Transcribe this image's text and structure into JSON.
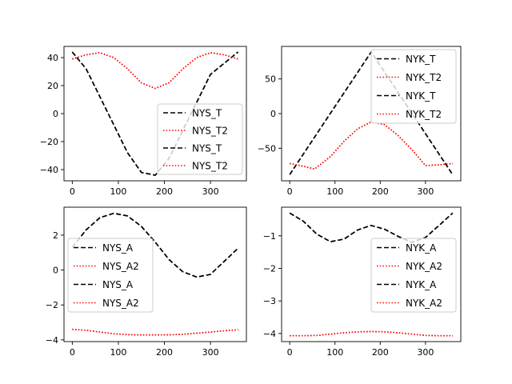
{
  "chart_data": [
    {
      "type": "line",
      "title": "",
      "xlabel": "",
      "ylabel": "",
      "xlim": [
        -18,
        378
      ],
      "ylim": [
        -48,
        48
      ],
      "xticks": [
        0,
        100,
        200,
        300
      ],
      "xtick_labels": [
        "0",
        "100",
        "200",
        "300"
      ],
      "yticks": [
        -40,
        -20,
        0,
        20,
        40
      ],
      "ytick_labels": [
        "−40",
        "−20",
        "0",
        "20",
        "40"
      ],
      "legend": {
        "position": "lower-right",
        "entries": [
          "NYS_T",
          "NYS_T2",
          "NYS_T",
          "NYS_T2"
        ]
      },
      "series": [
        {
          "name": "NYS_T",
          "style": "dashed",
          "color": "#000000",
          "x": [
            0,
            30,
            60,
            90,
            120,
            150,
            180,
            210,
            240,
            270,
            300,
            330,
            360
          ],
          "y": [
            44,
            32,
            12,
            -8,
            -28,
            -42,
            -44,
            -32,
            -12,
            8,
            28,
            36,
            44
          ]
        },
        {
          "name": "NYS_T2",
          "style": "dotted",
          "color": "#ff0000",
          "x": [
            0,
            30,
            60,
            90,
            120,
            150,
            180,
            210,
            240,
            270,
            300,
            330,
            360
          ],
          "y": [
            39,
            42,
            43.5,
            40,
            32,
            22,
            18,
            22,
            32,
            40,
            43.5,
            42,
            39
          ]
        },
        {
          "name": "NYS_T",
          "style": "dashed",
          "color": "#000000",
          "x": [
            0,
            30,
            60,
            90,
            120,
            150,
            180,
            210,
            240,
            270,
            300,
            330,
            360
          ],
          "y": [
            44,
            32,
            12,
            -8,
            -28,
            -42,
            -44,
            -32,
            -12,
            8,
            28,
            36,
            44
          ]
        },
        {
          "name": "NYS_T2",
          "style": "dotted",
          "color": "#ff0000",
          "x": [
            0,
            30,
            60,
            90,
            120,
            150,
            180,
            210,
            240,
            270,
            300,
            330,
            360
          ],
          "y": [
            39,
            42,
            43.5,
            40,
            32,
            22,
            18,
            22,
            32,
            40,
            43.5,
            42,
            39
          ]
        }
      ]
    },
    {
      "type": "line",
      "title": "",
      "xlabel": "",
      "ylabel": "",
      "xlim": [
        -18,
        378
      ],
      "ylim": [
        -97,
        97
      ],
      "xticks": [
        0,
        100,
        200,
        300
      ],
      "xtick_labels": [
        "0",
        "100",
        "200",
        "300"
      ],
      "yticks": [
        -50,
        0,
        50
      ],
      "ytick_labels": [
        "−50",
        "0",
        "50"
      ],
      "legend": {
        "position": "upper-right",
        "entries": [
          "NYK_T",
          "NYK_T2",
          "NYK_T",
          "NYK_T2"
        ]
      },
      "series": [
        {
          "name": "NYK_T",
          "style": "dashed",
          "color": "#000000",
          "x": [
            0,
            60,
            120,
            180,
            240,
            300,
            360
          ],
          "y": [
            -88,
            -29,
            30,
            89,
            30,
            -29,
            -88
          ]
        },
        {
          "name": "NYK_T2",
          "style": "dotted",
          "color": "#ff0000",
          "x": [
            0,
            30,
            55,
            90,
            120,
            150,
            180,
            210,
            240,
            270,
            300,
            330,
            360
          ],
          "y": [
            -72,
            -76,
            -80,
            -62,
            -40,
            -22,
            -12,
            -16,
            -32,
            -52,
            -75,
            -74,
            -72
          ]
        },
        {
          "name": "NYK_T",
          "style": "dashed",
          "color": "#000000",
          "x": [
            0,
            60,
            120,
            180,
            240,
            300,
            360
          ],
          "y": [
            -88,
            -29,
            30,
            89,
            30,
            -29,
            -88
          ]
        },
        {
          "name": "NYK_T2",
          "style": "dotted",
          "color": "#ff0000",
          "x": [
            0,
            30,
            55,
            90,
            120,
            150,
            180,
            210,
            240,
            270,
            300,
            330,
            360
          ],
          "y": [
            -72,
            -76,
            -80,
            -62,
            -40,
            -22,
            -12,
            -16,
            -32,
            -52,
            -75,
            -74,
            -72
          ]
        }
      ]
    },
    {
      "type": "line",
      "title": "",
      "xlabel": "",
      "ylabel": "",
      "xlim": [
        -18,
        378
      ],
      "ylim": [
        -4.1,
        3.6
      ],
      "xticks": [
        0,
        100,
        200,
        300
      ],
      "xtick_labels": [
        "0",
        "100",
        "200",
        "300"
      ],
      "yticks": [
        -4,
        -2,
        0,
        2
      ],
      "ytick_labels": [
        "−4",
        "−2",
        "0",
        "2"
      ],
      "legend": {
        "position": "center-left",
        "entries": [
          "NYS_A",
          "NYS_A2",
          "NYS_A",
          "NYS_A2"
        ]
      },
      "series": [
        {
          "name": "NYS_A",
          "style": "dashed",
          "color": "#000000",
          "x": [
            0,
            30,
            60,
            90,
            120,
            150,
            180,
            210,
            240,
            270,
            300,
            330,
            360
          ],
          "y": [
            1.3,
            2.3,
            3.0,
            3.25,
            3.1,
            2.5,
            1.6,
            0.6,
            -0.1,
            -0.4,
            -0.25,
            0.5,
            1.25
          ]
        },
        {
          "name": "NYS_A2",
          "style": "dotted",
          "color": "#ff0000",
          "x": [
            0,
            30,
            60,
            90,
            120,
            150,
            180,
            210,
            240,
            270,
            300,
            330,
            360
          ],
          "y": [
            -3.4,
            -3.45,
            -3.55,
            -3.65,
            -3.7,
            -3.72,
            -3.72,
            -3.71,
            -3.68,
            -3.62,
            -3.55,
            -3.48,
            -3.42
          ]
        },
        {
          "name": "NYS_A",
          "style": "dashed",
          "color": "#000000",
          "x": [
            0,
            30,
            60,
            90,
            120,
            150,
            180,
            210,
            240,
            270,
            300,
            330,
            360
          ],
          "y": [
            1.3,
            2.3,
            3.0,
            3.25,
            3.1,
            2.5,
            1.6,
            0.6,
            -0.1,
            -0.4,
            -0.25,
            0.5,
            1.25
          ]
        },
        {
          "name": "NYS_A2",
          "style": "dotted",
          "color": "#ff0000",
          "x": [
            0,
            30,
            60,
            90,
            120,
            150,
            180,
            210,
            240,
            270,
            300,
            330,
            360
          ],
          "y": [
            -3.4,
            -3.45,
            -3.55,
            -3.65,
            -3.7,
            -3.72,
            -3.72,
            -3.71,
            -3.68,
            -3.62,
            -3.55,
            -3.48,
            -3.42
          ]
        }
      ]
    },
    {
      "type": "line",
      "title": "",
      "xlabel": "",
      "ylabel": "",
      "xlim": [
        -18,
        378
      ],
      "ylim": [
        -4.25,
        -0.12
      ],
      "xticks": [
        0,
        100,
        200,
        300
      ],
      "xtick_labels": [
        "0",
        "100",
        "200",
        "300"
      ],
      "yticks": [
        -4,
        -3,
        -2,
        -1
      ],
      "ytick_labels": [
        "−4",
        "−3",
        "−2",
        "−1"
      ],
      "legend": {
        "position": "center-right",
        "entries": [
          "NYK_A",
          "NYK_A2",
          "NYK_A",
          "NYK_A2"
        ]
      },
      "series": [
        {
          "name": "NYK_A",
          "style": "dashed",
          "color": "#000000",
          "x": [
            0,
            30,
            60,
            90,
            120,
            150,
            180,
            210,
            240,
            270,
            300,
            330,
            360
          ],
          "y": [
            -0.3,
            -0.55,
            -0.95,
            -1.18,
            -1.1,
            -0.82,
            -0.68,
            -0.8,
            -1.02,
            -1.2,
            -1.05,
            -0.68,
            -0.3
          ]
        },
        {
          "name": "NYK_A2",
          "style": "dotted",
          "color": "#ff0000",
          "x": [
            0,
            30,
            60,
            90,
            120,
            150,
            180,
            210,
            240,
            270,
            300,
            330,
            360
          ],
          "y": [
            -4.07,
            -4.07,
            -4.06,
            -4.02,
            -3.98,
            -3.95,
            -3.94,
            -3.95,
            -3.98,
            -4.02,
            -4.06,
            -4.07,
            -4.07
          ]
        },
        {
          "name": "NYK_A",
          "style": "dashed",
          "color": "#000000",
          "x": [
            0,
            30,
            60,
            90,
            120,
            150,
            180,
            210,
            240,
            270,
            300,
            330,
            360
          ],
          "y": [
            -0.3,
            -0.55,
            -0.95,
            -1.18,
            -1.1,
            -0.82,
            -0.68,
            -0.8,
            -1.02,
            -1.2,
            -1.05,
            -0.68,
            -0.3
          ]
        },
        {
          "name": "NYK_A2",
          "style": "dotted",
          "color": "#ff0000",
          "x": [
            0,
            30,
            60,
            90,
            120,
            150,
            180,
            210,
            240,
            270,
            300,
            330,
            360
          ],
          "y": [
            -4.07,
            -4.07,
            -4.06,
            -4.02,
            -3.98,
            -3.95,
            -3.94,
            -3.95,
            -3.98,
            -4.02,
            -4.06,
            -4.07,
            -4.07
          ]
        }
      ]
    }
  ]
}
